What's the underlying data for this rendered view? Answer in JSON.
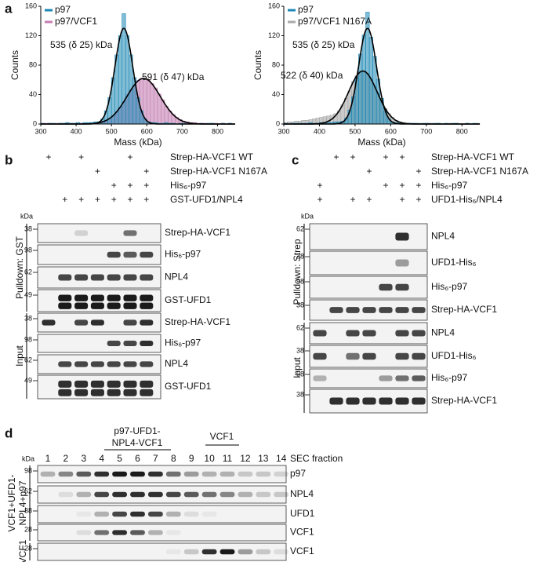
{
  "chart_data": [
    {
      "type": "histogram",
      "xlabel": "Mass (kDa)",
      "ylabel": "Counts",
      "bins": [
        300,
        310,
        320,
        330,
        340,
        350,
        360,
        370,
        380,
        390,
        400,
        410,
        420,
        430,
        440,
        450,
        460,
        470,
        480,
        490,
        500,
        510,
        520,
        530,
        540,
        550,
        560,
        570,
        580,
        590,
        600,
        610,
        620,
        630,
        640,
        650,
        660,
        670,
        680,
        690,
        700,
        710,
        720,
        730,
        740,
        750,
        760,
        770,
        780,
        790,
        800,
        810,
        820,
        830,
        840,
        850
      ],
      "series": [
        {
          "name": "p97",
          "color": "#1b87b5",
          "values": [
            1,
            0,
            1,
            1,
            0,
            1,
            1,
            2,
            1,
            1,
            2,
            1,
            2,
            2,
            2,
            3,
            3,
            7,
            18,
            36,
            63,
            94,
            120,
            150,
            120,
            94,
            63,
            36,
            18,
            7,
            3,
            2,
            2,
            1,
            1,
            2,
            1,
            1,
            0,
            1,
            1,
            0,
            1,
            1,
            0,
            1,
            0,
            1,
            1,
            0,
            0,
            1,
            0,
            1,
            0
          ]
        },
        {
          "name": "p97/VCF1",
          "color": "#c47fb3",
          "values": [
            1,
            1,
            1,
            0,
            1,
            1,
            1,
            1,
            1,
            1,
            1,
            1,
            1,
            1,
            1,
            2,
            3,
            4,
            5,
            8,
            11,
            17,
            23,
            30,
            40,
            47,
            53,
            59,
            62,
            62,
            60,
            55,
            49,
            41,
            33,
            24,
            18,
            13,
            9,
            6,
            4,
            3,
            2,
            2,
            1,
            1,
            1,
            0,
            1,
            1,
            0,
            1,
            0,
            1,
            0
          ]
        }
      ],
      "fits": [
        {
          "label": "535 (δ 25) kDa",
          "center": 535,
          "sigma": 25,
          "peak": 130
        },
        {
          "label": "591 (δ 47) kDa",
          "center": 591,
          "sigma": 47,
          "peak": 62
        }
      ],
      "xlim": [
        300,
        850
      ],
      "xticks": [
        300,
        400,
        500,
        600,
        700,
        800
      ],
      "ylim": [
        0,
        160
      ],
      "yticks": [
        0,
        40,
        80,
        120,
        160
      ]
    },
    {
      "type": "histogram",
      "xlabel": "Mass (kDa)",
      "ylabel": "Counts",
      "bins": [
        300,
        310,
        320,
        330,
        340,
        350,
        360,
        370,
        380,
        390,
        400,
        410,
        420,
        430,
        440,
        450,
        460,
        470,
        480,
        490,
        500,
        510,
        520,
        530,
        540,
        550,
        560,
        570,
        580,
        590,
        600,
        610,
        620,
        630,
        640,
        650,
        660,
        670,
        680,
        690,
        700,
        710,
        720,
        730,
        740,
        750,
        760,
        770,
        780,
        790,
        800,
        810,
        820,
        830,
        840,
        850
      ],
      "series": [
        {
          "name": "p97",
          "color": "#1b87b5",
          "values": [
            1,
            0,
            1,
            1,
            1,
            1,
            1,
            2,
            1,
            1,
            2,
            1,
            2,
            2,
            3,
            3,
            4,
            8,
            19,
            37,
            64,
            95,
            121,
            152,
            118,
            92,
            61,
            35,
            17,
            7,
            3,
            2,
            2,
            1,
            1,
            1,
            1,
            1,
            0,
            1,
            1,
            0,
            1,
            1,
            0,
            1,
            0,
            1,
            1,
            0,
            0,
            1,
            0,
            1,
            0
          ]
        },
        {
          "name": "p97/VCF1 N167A",
          "color": "#a9a9a9",
          "values": [
            2,
            3,
            3,
            4,
            4,
            5,
            5,
            6,
            7,
            8,
            9,
            10,
            11,
            12,
            14,
            18,
            26,
            35,
            45,
            58,
            66,
            71,
            72,
            69,
            61,
            51,
            41,
            30,
            21,
            14,
            9,
            5,
            3,
            2,
            1,
            1,
            1,
            0,
            1,
            0,
            1,
            1,
            0,
            1,
            0,
            0,
            1,
            0,
            1,
            0,
            0,
            1,
            0,
            0,
            1
          ]
        }
      ],
      "fits": [
        {
          "label": "535 (δ 25) kDa",
          "center": 535,
          "sigma": 25,
          "peak": 130
        },
        {
          "label": "522 (δ 40) kDa",
          "center": 522,
          "sigma": 40,
          "peak": 72
        }
      ],
      "xlim": [
        300,
        850
      ],
      "xticks": [
        300,
        400,
        500,
        600,
        700,
        800
      ],
      "ylim": [
        0,
        160
      ],
      "yticks": [
        0,
        40,
        80,
        120,
        160
      ]
    }
  ],
  "panel_a": {
    "label": "a"
  },
  "panel_b": {
    "label": "b",
    "kda": "kDa",
    "conditions": [
      {
        "name": "Strep-HA-VCF1 WT",
        "marks": [
          "+",
          null,
          "+",
          null,
          null,
          "+",
          null
        ]
      },
      {
        "name": "Strep-HA-VCF1 N167A",
        "marks": [
          null,
          null,
          null,
          "+",
          null,
          null,
          "+"
        ]
      },
      {
        "name": "His₆-p97",
        "marks": [
          null,
          null,
          null,
          null,
          "+",
          "+",
          "+"
        ]
      },
      {
        "name": "GST-UFD1/NPL4",
        "marks": [
          null,
          "+",
          "+",
          "+",
          "+",
          "+",
          "+"
        ]
      }
    ],
    "groups": [
      {
        "name_lines": [
          "Pulldown: GST"
        ],
        "blots": [
          {
            "name": "Strep-HA-VCF1",
            "marker": 38
          },
          {
            "name": "His₆-p97",
            "marker": 98
          },
          {
            "name": "NPL4",
            "marker": 62
          },
          {
            "name": "GST-UFD1",
            "marker": 49
          }
        ]
      },
      {
        "name_lines": [
          "Input"
        ],
        "blots": [
          {
            "name": "Strep-HA-VCF1",
            "marker": 38
          },
          {
            "name": "His₆-p97",
            "marker": 98
          },
          {
            "name": "NPL4",
            "marker": 62
          },
          {
            "name": "GST-UFD1",
            "marker": 49
          }
        ]
      }
    ]
  },
  "panel_c": {
    "label": "c",
    "kda": "kDa",
    "conditions": [
      {
        "name": "Strep-HA-VCF1 WT",
        "marks": [
          null,
          "+",
          "+",
          null,
          "+",
          "+",
          null
        ]
      },
      {
        "name": "Strep-HA-VCF1 N167A",
        "marks": [
          null,
          null,
          null,
          "+",
          null,
          null,
          "+"
        ]
      },
      {
        "name": "His₆-p97",
        "marks": [
          "+",
          null,
          null,
          null,
          "+",
          "+",
          "+"
        ]
      },
      {
        "name": "UFD1-His₆/NPL4",
        "marks": [
          "+",
          null,
          "+",
          "+",
          null,
          "+",
          "+"
        ]
      }
    ],
    "groups": [
      {
        "name_lines": [
          "Pulldown: Strep"
        ],
        "blots": [
          {
            "name": "NPL4",
            "marker": 62
          },
          {
            "name": "UFD1-His₆",
            "marker": 38
          },
          {
            "name": "His₆-p97",
            "marker": 98
          },
          {
            "name": "Strep-HA-VCF1",
            "marker": 38
          }
        ]
      },
      {
        "name_lines": [
          "Input"
        ],
        "blots": [
          {
            "name": "NPL4",
            "marker": 62
          },
          {
            "name": "UFD1-His₆",
            "marker": 38
          },
          {
            "name": "His₆-p97",
            "marker": 98
          },
          {
            "name": "Strep-HA-VCF1",
            "marker": 38
          }
        ]
      }
    ]
  },
  "panel_d": {
    "label": "d",
    "kda": "kDa",
    "headers": [
      {
        "lines": [
          "p97-UFD1-",
          "NPL4-VCF1"
        ]
      },
      {
        "lines": [
          "VCF1"
        ]
      }
    ],
    "fractions": [
      1,
      2,
      3,
      4,
      5,
      6,
      7,
      8,
      9,
      10,
      11,
      12,
      13,
      14
    ],
    "fraction_label": "SEC fraction",
    "groups": [
      {
        "name_lines": [
          "VCF1+UFD1-",
          "NPL4+p97"
        ],
        "blots": [
          {
            "name": "p97",
            "marker": 98
          },
          {
            "name": "NPL4",
            "marker": 62
          },
          {
            "name": "UFD1",
            "marker": 38
          },
          {
            "name": "VCF1",
            "marker": 28
          }
        ]
      },
      {
        "name_lines": [
          "VCF1"
        ],
        "blots": [
          {
            "name": "VCF1",
            "marker": 28
          }
        ]
      }
    ]
  }
}
